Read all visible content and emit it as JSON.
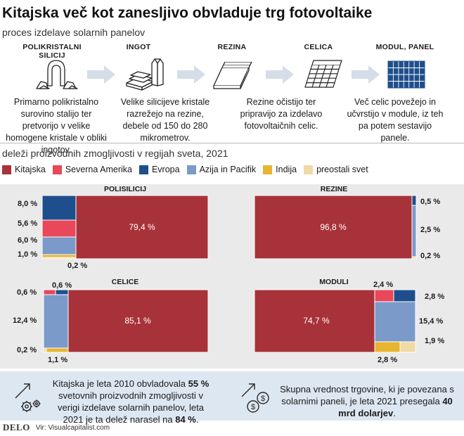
{
  "title": "Kitajska več kot zanesljivo obvladuje trg fotovoltaike",
  "subtitle": "proces izdelave solarnih panelov",
  "stages": [
    {
      "title": "POLIKRISTALNI SILICIJ",
      "desc": "Primarno polikristalno surovino stalijo ter pretvorijo v velike homogene kristale v obliki ingotov.",
      "icon": "polysilicon-icon"
    },
    {
      "title": "INGOT",
      "desc": "Velike silicijeve kristale razrežejo na rezine, debele od 150 do 280 mikrometrov.",
      "icon": "ingot-icon"
    },
    {
      "title": "REZINA",
      "desc": "Rezine očistijo ter pripravijo za izdelavo fotovoltaičnih celic.",
      "icon": "wafer-icon"
    },
    {
      "title": "CELICA",
      "desc": "Več celic povežejo in učvrstijo v module, iz teh pa potem sestavijo panele.",
      "icon": "cell-icon"
    },
    {
      "title": "MODUL, PANEL",
      "desc": "",
      "icon": "module-icon"
    }
  ],
  "section_label": "deleži proizvodnih zmogljivosti v regijah sveta, 2021",
  "colors": {
    "Kitajska": "#a8323a",
    "Severna Amerika": "#e8485a",
    "Evropa": "#1f4e8c",
    "Azija in Pacifik": "#7b9ac9",
    "Indija": "#e8b530",
    "preostali svet": "#f0daa6"
  },
  "chart_data": [
    {
      "type": "treemap",
      "title": "POLISILICIJ",
      "values": {
        "Kitajska": 79.4,
        "Evropa": 8.0,
        "Severna Amerika": 5.6,
        "Azija in Pacifik": 6.0,
        "Indija": 1.0,
        "preostali svet": 0.2
      },
      "labels": [
        "79,4 %",
        "8,0 %",
        "5,6 %",
        "6,0 %",
        "1,0 %",
        "0,2 %"
      ]
    },
    {
      "type": "treemap",
      "title": "REZINE",
      "values": {
        "Kitajska": 96.8,
        "Evropa": 0.5,
        "Azija in Pacifik": 2.5,
        "preostali svet": 0.2
      },
      "labels": [
        "96,8 %",
        "0,5 %",
        "2,5 %",
        "0,2 %"
      ]
    },
    {
      "type": "treemap",
      "title": "CELICE",
      "values": {
        "Kitajska": 85.1,
        "Severna Amerika": 0.6,
        "Evropa": 0.6,
        "Azija in Pacifik": 12.4,
        "Indija": 1.1,
        "preostali svet": 0.2
      },
      "labels": [
        "85,1 %",
        "0,6 %",
        "0,6 %",
        "12,4 %",
        "1,1 %",
        "0,2 %"
      ]
    },
    {
      "type": "treemap",
      "title": "MODULI",
      "values": {
        "Kitajska": 74.7,
        "Severna Amerika": 2.4,
        "Evropa": 2.8,
        "Azija in Pacifik": 15.4,
        "Indija": 2.8,
        "preostali svet": 1.9
      },
      "labels": [
        "74,7 %",
        "2,4 %",
        "2,8 %",
        "15,4 %",
        "2,8 %",
        "1,9 %"
      ]
    }
  ],
  "footer": {
    "left_pre": "Kitajska je leta 2010 obvladovala ",
    "left_b1": "55 %",
    "left_mid": "svetovnih proizvodnih zmogljivosti v verigi izdelave solarnih panelov, leta 2021 je ta delež narasel na ",
    "left_b2": "84 %",
    "left_end": ".",
    "right_pre": "Skupna vrednost trgovine, ki je povezana s solarnimi paneli, je leta 2021 presegala ",
    "right_b": "40 mrd dolarjev",
    "right_end": "."
  },
  "source": {
    "brand": "DELO",
    "text": "Vir: Visualcapitalist.com"
  }
}
